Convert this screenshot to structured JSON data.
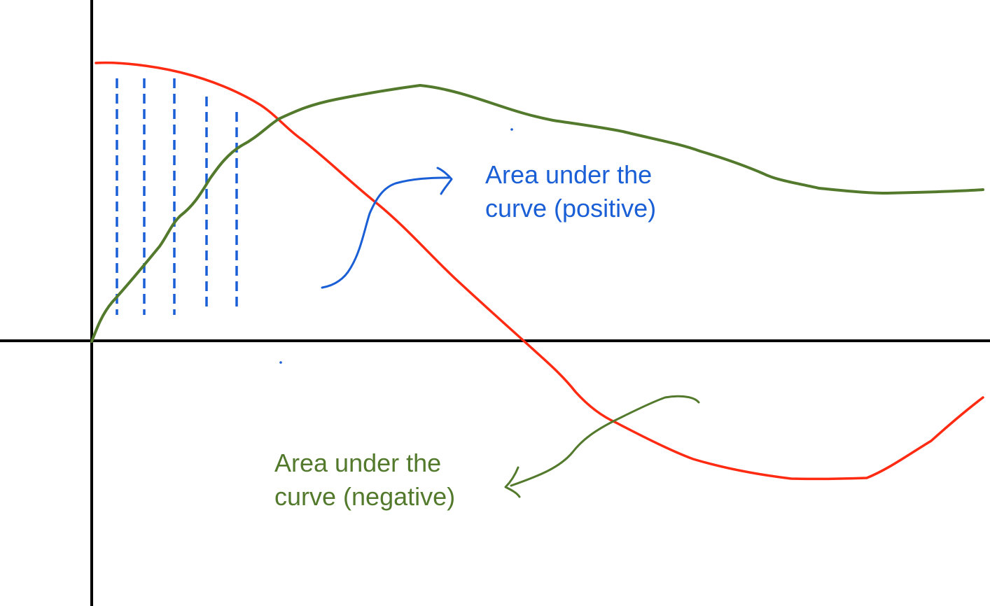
{
  "annotations": {
    "positive": {
      "line1": "Area under the",
      "line2": "curve (positive)",
      "color": "#1a5fd6"
    },
    "negative": {
      "line1": "Area under the",
      "line2": "curve (negative)",
      "color": "#537a2c"
    }
  },
  "colors": {
    "axes": "#000000",
    "red_curve": "#ff2a12",
    "green_curve": "#537a2c",
    "hatch": "#1a5fd6"
  }
}
